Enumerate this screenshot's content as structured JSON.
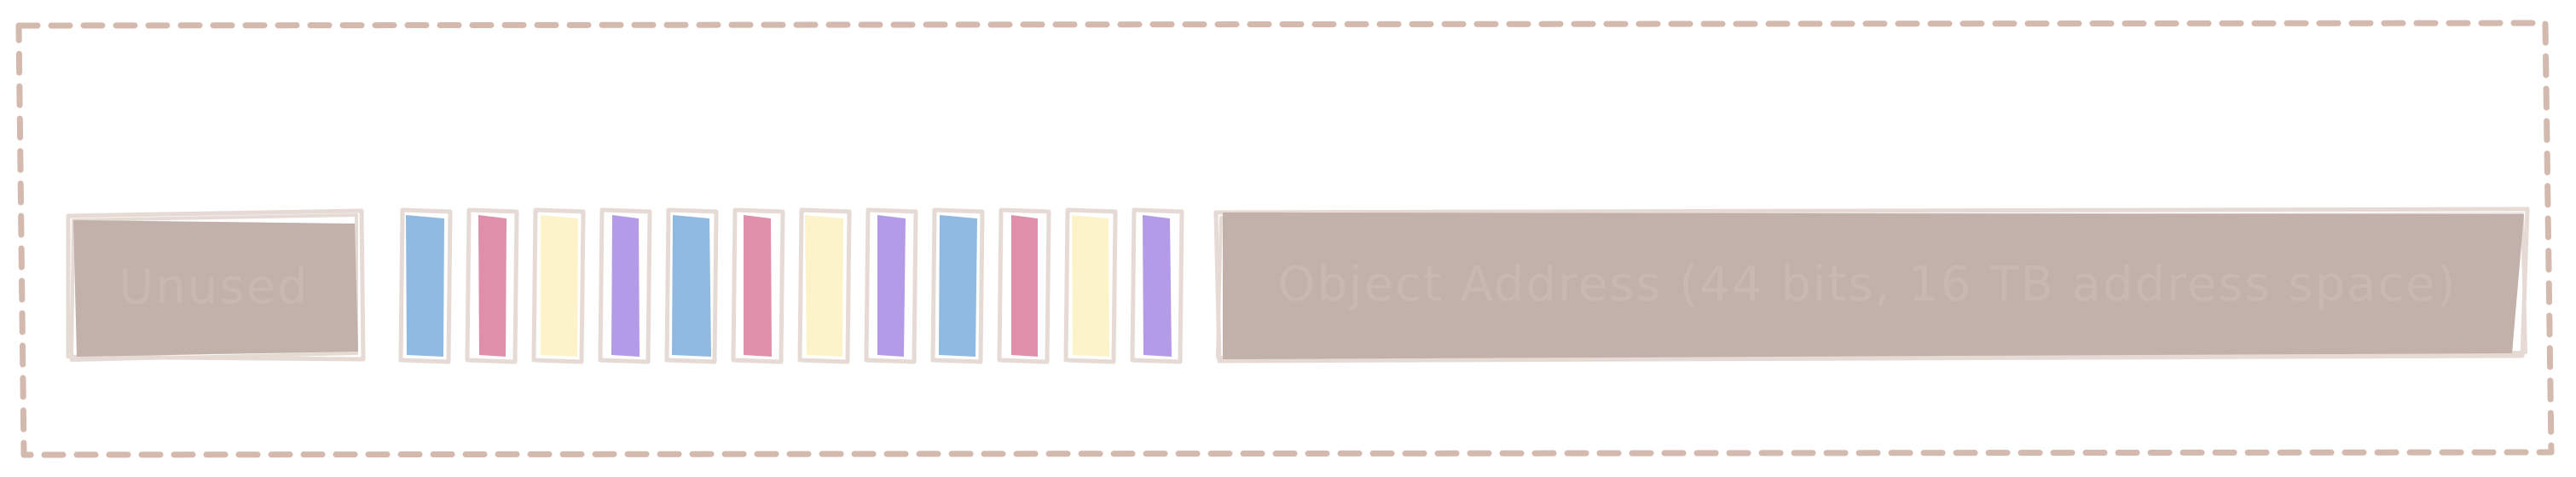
{
  "diagram": {
    "colors": {
      "frame": "#d3b9ae",
      "sketch_outline": "#e6dad4",
      "gray_block": "#c2b0ab",
      "label_text": "#cfbfb8",
      "blue": "#8fb9e1",
      "pink": "#e08fab",
      "yellow": "#fdf3c9",
      "purple": "#b39be8"
    },
    "unused_block": {
      "label": "Unused"
    },
    "flag_bits": [
      {
        "color": "blue"
      },
      {
        "color": "pink"
      },
      {
        "color": "yellow"
      },
      {
        "color": "purple"
      },
      {
        "color": "blue"
      },
      {
        "color": "pink"
      },
      {
        "color": "yellow"
      },
      {
        "color": "purple"
      },
      {
        "color": "blue"
      },
      {
        "color": "pink"
      },
      {
        "color": "yellow"
      },
      {
        "color": "purple"
      }
    ],
    "address_block": {
      "label": "Object Address (44 bits, 16 TB address space)"
    }
  }
}
